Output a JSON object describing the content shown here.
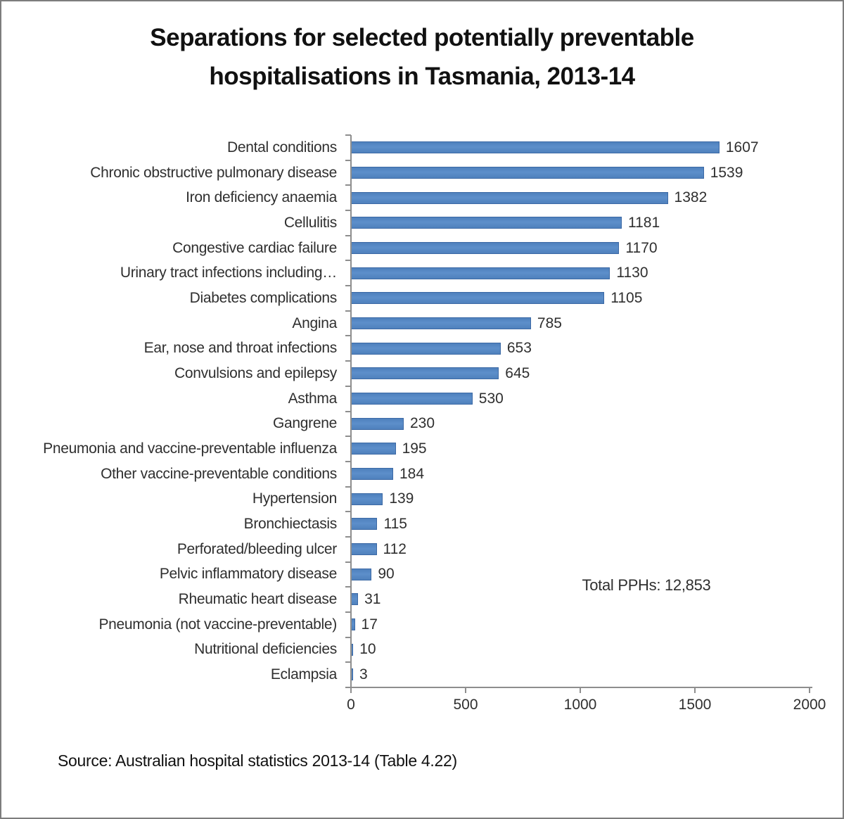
{
  "frame": {
    "title_line1": "Separations for selected potentially preventable",
    "title_line2": "hospitalisations in Tasmania, 2013-14"
  },
  "chart_data": {
    "type": "bar",
    "orientation": "horizontal",
    "title": "Separations for selected potentially preventable hospitalisations in Tasmania, 2013-14",
    "categories": [
      "Dental conditions",
      "Chronic obstructive pulmonary disease",
      "Iron deficiency anaemia",
      "Cellulitis",
      "Congestive cardiac failure",
      "Urinary tract infections including…",
      "Diabetes complications",
      "Angina",
      "Ear, nose and throat infections",
      "Convulsions and epilepsy",
      "Asthma",
      "Gangrene",
      "Pneumonia and vaccine-preventable influenza",
      "Other vaccine-preventable conditions",
      "Hypertension",
      "Bronchiectasis",
      "Perforated/bleeding ulcer",
      "Pelvic inflammatory disease",
      "Rheumatic heart disease",
      "Pneumonia (not vaccine-preventable)",
      "Nutritional deficiencies",
      "Eclampsia"
    ],
    "values": [
      1607,
      1539,
      1382,
      1181,
      1170,
      1130,
      1105,
      785,
      653,
      645,
      530,
      230,
      195,
      184,
      139,
      115,
      112,
      90,
      31,
      17,
      10,
      3
    ],
    "x_ticks": [
      0,
      500,
      1000,
      1500,
      2000
    ],
    "xlim": [
      0,
      2000
    ],
    "grid": false,
    "legend": false,
    "value_labels": true,
    "annotation": "Total PPHs: 12,853",
    "source": "Source: Australian hospital statistics 2013-14 (Table 4.22)",
    "bar_color": "#4f81bd",
    "bar_highlight_color": "#5d8fca",
    "bar_border_color": "#3c69a5",
    "axis_color": "#8e8e8e",
    "text_color": "#2f2f2f"
  }
}
